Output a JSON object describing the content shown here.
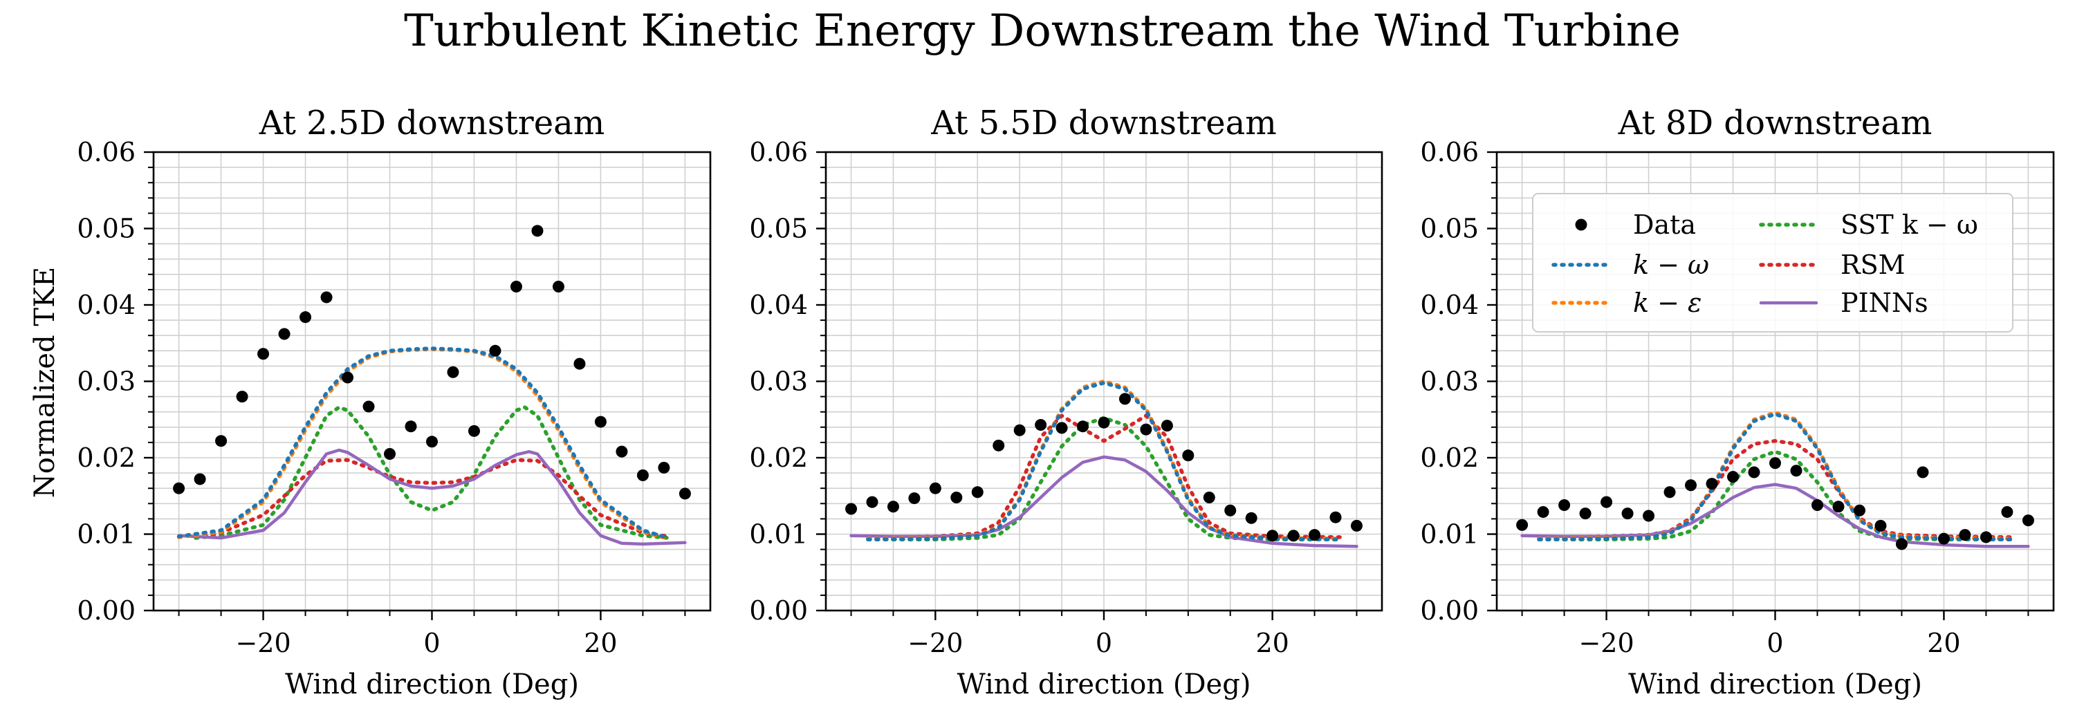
{
  "figure": {
    "title": "Turbulent Kinetic Energy Downstream the Wind Turbine",
    "ylabel": "Normalized TKE",
    "xlabel": "Wind direction (Deg)"
  },
  "colors": {
    "Data": "#000000",
    "k-omega": "#1f77b4",
    "k-epsilon": "#ff7f0e",
    "SST k-omega": "#2ca02c",
    "RSM": "#d62728",
    "PINNs": "#9467bd",
    "grid": "#d0d0d0"
  },
  "legend": {
    "placement": "top-right of third panel",
    "entries": [
      {
        "id": "Data",
        "label": "Data",
        "style": "dots"
      },
      {
        "id": "k-omega",
        "label": "k − ω",
        "style": "dotted"
      },
      {
        "id": "k-epsilon",
        "label": "k − ε",
        "style": "dotted"
      },
      {
        "id": "SST k-omega",
        "label": "SST k − ω",
        "style": "dotted"
      },
      {
        "id": "RSM",
        "label": "RSM",
        "style": "dotted"
      },
      {
        "id": "PINNs",
        "label": "PINNs",
        "style": "solid"
      }
    ]
  },
  "chart_data": [
    {
      "type": "line",
      "title": "At 2.5D downstream",
      "xlabel": "Wind direction (Deg)",
      "ylabel": "Normalized TKE",
      "xlim": [
        -33,
        33
      ],
      "ylim": [
        0,
        0.06
      ],
      "xticks": [
        -20,
        0,
        20
      ],
      "xtick_labels": [
        "−20",
        "0",
        "20"
      ],
      "yticks": [
        0.0,
        0.01,
        0.02,
        0.03,
        0.04,
        0.05,
        0.06
      ],
      "ytick_labels": [
        "0.00",
        "0.01",
        "0.02",
        "0.03",
        "0.04",
        "0.05",
        "0.06"
      ],
      "grid": true,
      "legend": false,
      "scatter": {
        "name": "Data",
        "x": [
          -30,
          -27.5,
          -25,
          -22.5,
          -20,
          -17.5,
          -15,
          -12.5,
          -10,
          -7.5,
          -5,
          -2.5,
          0,
          2.5,
          5,
          7.5,
          10,
          12.5,
          15,
          17.5,
          20,
          22.5,
          25,
          27.5,
          30
        ],
        "y": [
          0.016,
          0.0172,
          0.0222,
          0.028,
          0.0336,
          0.0362,
          0.0384,
          0.041,
          0.0305,
          0.0267,
          0.0205,
          0.0241,
          0.0221,
          0.0312,
          0.0235,
          0.034,
          0.0424,
          0.0497,
          0.0424,
          0.0323,
          0.0247,
          0.0208,
          0.0177,
          0.0187,
          0.0153
        ]
      },
      "series": [
        {
          "name": "k-omega",
          "x": [
            -30,
            -25,
            -20,
            -17.5,
            -15,
            -12.5,
            -10,
            -7.5,
            -5,
            -2.5,
            0,
            2.5,
            5,
            7.5,
            10,
            12.5,
            15,
            17.5,
            20,
            25,
            28
          ],
          "y": [
            0.0097,
            0.0105,
            0.0145,
            0.019,
            0.024,
            0.0285,
            0.0316,
            0.0333,
            0.034,
            0.0342,
            0.0343,
            0.0342,
            0.034,
            0.0333,
            0.0316,
            0.0285,
            0.024,
            0.019,
            0.0145,
            0.0105,
            0.0095
          ]
        },
        {
          "name": "k-epsilon",
          "x": [
            -30,
            -25,
            -20,
            -17.5,
            -15,
            -12.5,
            -10,
            -7.5,
            -5,
            -2.5,
            0,
            2.5,
            5,
            7.5,
            10,
            12.5,
            15,
            17.5,
            20,
            25,
            28
          ],
          "y": [
            0.0096,
            0.0103,
            0.0142,
            0.0186,
            0.0236,
            0.0281,
            0.0313,
            0.0331,
            0.0339,
            0.0341,
            0.0342,
            0.0341,
            0.0339,
            0.0331,
            0.0313,
            0.0281,
            0.0236,
            0.0186,
            0.0142,
            0.0103,
            0.0094
          ]
        },
        {
          "name": "SST k-omega",
          "x": [
            -28,
            -25,
            -20,
            -17.5,
            -15,
            -12.5,
            -11,
            -10,
            -7.5,
            -5,
            -2.5,
            0,
            2.5,
            5,
            7.5,
            10,
            11,
            12.5,
            15,
            17.5,
            20,
            25,
            28
          ],
          "y": [
            0.0095,
            0.0098,
            0.0112,
            0.0145,
            0.02,
            0.0255,
            0.0266,
            0.0262,
            0.0228,
            0.0178,
            0.0142,
            0.0131,
            0.0142,
            0.0178,
            0.0228,
            0.0262,
            0.0266,
            0.0255,
            0.02,
            0.0145,
            0.0112,
            0.0098,
            0.0095
          ]
        },
        {
          "name": "RSM",
          "x": [
            -28,
            -25,
            -20,
            -17.5,
            -15,
            -12.5,
            -10,
            -7.5,
            -5,
            -2.5,
            0,
            2.5,
            5,
            7.5,
            10,
            12.5,
            15,
            17.5,
            20,
            25,
            28
          ],
          "y": [
            0.0097,
            0.0102,
            0.0125,
            0.015,
            0.0177,
            0.0196,
            0.0197,
            0.0187,
            0.0175,
            0.0168,
            0.0167,
            0.0168,
            0.0175,
            0.0187,
            0.0197,
            0.0196,
            0.0177,
            0.015,
            0.0125,
            0.0102,
            0.0097
          ]
        },
        {
          "name": "PINNs",
          "x": [
            -30,
            -25,
            -20,
            -17.5,
            -15,
            -12.5,
            -11,
            -10,
            -7.5,
            -5,
            -2.5,
            0,
            2.5,
            5,
            7.5,
            10,
            11.5,
            12.5,
            15,
            17.5,
            20,
            22.5,
            25,
            30
          ],
          "y": [
            0.0098,
            0.0095,
            0.0105,
            0.0128,
            0.0168,
            0.0205,
            0.021,
            0.0207,
            0.019,
            0.0172,
            0.0163,
            0.016,
            0.0163,
            0.0172,
            0.019,
            0.0204,
            0.0208,
            0.0205,
            0.017,
            0.0128,
            0.0098,
            0.0088,
            0.0087,
            0.0089
          ]
        }
      ]
    },
    {
      "type": "line",
      "title": "At 5.5D downstream",
      "xlabel": "Wind direction (Deg)",
      "ylabel": "",
      "xlim": [
        -33,
        33
      ],
      "ylim": [
        0,
        0.06
      ],
      "xticks": [
        -20,
        0,
        20
      ],
      "xtick_labels": [
        "−20",
        "0",
        "20"
      ],
      "yticks": [
        0.0,
        0.01,
        0.02,
        0.03,
        0.04,
        0.05,
        0.06
      ],
      "ytick_labels": [
        "0.00",
        "0.01",
        "0.02",
        "0.03",
        "0.04",
        "0.05",
        "0.06"
      ],
      "grid": true,
      "legend": false,
      "scatter": {
        "name": "Data",
        "x": [
          -30,
          -27.5,
          -25,
          -22.5,
          -20,
          -17.5,
          -15,
          -12.5,
          -10,
          -7.5,
          -5,
          -2.5,
          0,
          2.5,
          5,
          7.5,
          10,
          12.5,
          15,
          17.5,
          20,
          22.5,
          25,
          27.5,
          30
        ],
        "y": [
          0.0133,
          0.0142,
          0.0136,
          0.0147,
          0.016,
          0.0148,
          0.0155,
          0.0216,
          0.0236,
          0.0243,
          0.0239,
          0.0241,
          0.0246,
          0.0277,
          0.0237,
          0.0242,
          0.0203,
          0.0148,
          0.0131,
          0.0121,
          0.0098,
          0.0098,
          0.0099,
          0.0122,
          0.0111
        ]
      },
      "series": [
        {
          "name": "k-omega",
          "x": [
            -28,
            -20,
            -15,
            -12.5,
            -10,
            -7.5,
            -5,
            -2.5,
            0,
            2.5,
            5,
            7.5,
            10,
            12.5,
            15,
            20,
            28
          ],
          "y": [
            0.0093,
            0.0094,
            0.0098,
            0.0108,
            0.0145,
            0.0208,
            0.0262,
            0.029,
            0.0298,
            0.029,
            0.0262,
            0.0208,
            0.0145,
            0.0108,
            0.0098,
            0.0094,
            0.0093
          ]
        },
        {
          "name": "k-epsilon",
          "x": [
            -28,
            -20,
            -15,
            -12.5,
            -10,
            -7.5,
            -5,
            -2.5,
            0,
            2.5,
            5,
            7.5,
            10,
            12.5,
            15,
            20,
            28
          ],
          "y": [
            0.0094,
            0.0095,
            0.0099,
            0.0109,
            0.0147,
            0.021,
            0.0264,
            0.0292,
            0.03,
            0.0292,
            0.0264,
            0.021,
            0.0147,
            0.0109,
            0.0099,
            0.0095,
            0.0094
          ]
        },
        {
          "name": "SST k-omega",
          "x": [
            -28,
            -20,
            -15,
            -12.5,
            -10,
            -7.5,
            -5,
            -2.5,
            0,
            2.5,
            5,
            7.5,
            10,
            12.5,
            15,
            20,
            28
          ],
          "y": [
            0.0093,
            0.0093,
            0.0095,
            0.0099,
            0.012,
            0.0168,
            0.0215,
            0.0243,
            0.0252,
            0.0243,
            0.0215,
            0.0168,
            0.012,
            0.0099,
            0.0095,
            0.0093,
            0.0093
          ]
        },
        {
          "name": "RSM",
          "x": [
            -28,
            -20,
            -15,
            -12.5,
            -10,
            -7.5,
            -5,
            -2.5,
            0,
            2.5,
            5,
            7.5,
            10,
            12.5,
            15,
            20,
            28
          ],
          "y": [
            0.0096,
            0.0097,
            0.0101,
            0.0115,
            0.0162,
            0.0227,
            0.0255,
            0.0238,
            0.0222,
            0.0238,
            0.0255,
            0.0227,
            0.0162,
            0.0115,
            0.0101,
            0.0097,
            0.0096
          ]
        },
        {
          "name": "PINNs",
          "x": [
            -30,
            -25,
            -20,
            -15,
            -12.5,
            -10,
            -7.5,
            -5,
            -2.5,
            0,
            2.5,
            5,
            7.5,
            10,
            12.5,
            15,
            20,
            25,
            30
          ],
          "y": [
            0.0098,
            0.0097,
            0.0097,
            0.0099,
            0.0106,
            0.0122,
            0.0148,
            0.0174,
            0.0194,
            0.0201,
            0.0197,
            0.0182,
            0.0157,
            0.0128,
            0.0108,
            0.0096,
            0.0088,
            0.0085,
            0.0084
          ]
        }
      ]
    },
    {
      "type": "line",
      "title": "At 8D downstream",
      "xlabel": "Wind direction (Deg)",
      "ylabel": "",
      "xlim": [
        -33,
        33
      ],
      "ylim": [
        0,
        0.06
      ],
      "xticks": [
        -20,
        0,
        20
      ],
      "xtick_labels": [
        "−20",
        "0",
        "20"
      ],
      "yticks": [
        0.0,
        0.01,
        0.02,
        0.03,
        0.04,
        0.05,
        0.06
      ],
      "ytick_labels": [
        "0.00",
        "0.01",
        "0.02",
        "0.03",
        "0.04",
        "0.05",
        "0.06"
      ],
      "grid": true,
      "legend": true,
      "scatter": {
        "name": "Data",
        "x": [
          -30,
          -27.5,
          -25,
          -22.5,
          -20,
          -17.5,
          -15,
          -12.5,
          -10,
          -7.5,
          -5,
          -2.5,
          0,
          2.5,
          5,
          7.5,
          10,
          12.5,
          15,
          17.5,
          20,
          22.5,
          25,
          27.5,
          30
        ],
        "y": [
          0.0112,
          0.0129,
          0.0138,
          0.0127,
          0.0142,
          0.0127,
          0.0124,
          0.0155,
          0.0164,
          0.0166,
          0.0175,
          0.0181,
          0.0193,
          0.0183,
          0.0138,
          0.0136,
          0.0131,
          0.0111,
          0.0087,
          0.0181,
          0.0094,
          0.0099,
          0.0096,
          0.0129,
          0.0118
        ]
      },
      "series": [
        {
          "name": "k-omega",
          "x": [
            -28,
            -20,
            -15,
            -12.5,
            -10,
            -7.5,
            -5,
            -2.5,
            0,
            2.5,
            5,
            7.5,
            10,
            12.5,
            15,
            20,
            28
          ],
          "y": [
            0.0093,
            0.0094,
            0.0096,
            0.0101,
            0.0118,
            0.0158,
            0.0212,
            0.0248,
            0.0257,
            0.0248,
            0.0212,
            0.0158,
            0.0118,
            0.0101,
            0.0096,
            0.0094,
            0.0093
          ]
        },
        {
          "name": "k-epsilon",
          "x": [
            -28,
            -20,
            -15,
            -12.5,
            -10,
            -7.5,
            -5,
            -2.5,
            0,
            2.5,
            5,
            7.5,
            10,
            12.5,
            15,
            20,
            28
          ],
          "y": [
            0.0094,
            0.0095,
            0.0097,
            0.0102,
            0.0119,
            0.016,
            0.0214,
            0.025,
            0.0259,
            0.025,
            0.0214,
            0.016,
            0.0119,
            0.0102,
            0.0097,
            0.0095,
            0.0094
          ]
        },
        {
          "name": "SST k-omega",
          "x": [
            -28,
            -20,
            -15,
            -12.5,
            -10,
            -7.5,
            -5,
            -2.5,
            0,
            2.5,
            5,
            7.5,
            10,
            12.5,
            15,
            20,
            28
          ],
          "y": [
            0.0093,
            0.0093,
            0.0094,
            0.0096,
            0.0104,
            0.0128,
            0.0168,
            0.0198,
            0.0208,
            0.0198,
            0.0168,
            0.0128,
            0.0104,
            0.0096,
            0.0094,
            0.0093,
            0.0093
          ]
        },
        {
          "name": "RSM",
          "x": [
            -28,
            -20,
            -15,
            -12.5,
            -10,
            -7.5,
            -5,
            -2.5,
            0,
            2.5,
            5,
            7.5,
            10,
            12.5,
            15,
            20,
            28
          ],
          "y": [
            0.0096,
            0.0097,
            0.0099,
            0.0104,
            0.0121,
            0.0156,
            0.0198,
            0.0218,
            0.0222,
            0.0218,
            0.0198,
            0.0156,
            0.0121,
            0.0104,
            0.0099,
            0.0097,
            0.0096
          ]
        },
        {
          "name": "PINNs",
          "x": [
            -30,
            -25,
            -20,
            -15,
            -12.5,
            -10,
            -7.5,
            -5,
            -2.5,
            0,
            2.5,
            5,
            7.5,
            10,
            12.5,
            15,
            20,
            25,
            30
          ],
          "y": [
            0.0098,
            0.0097,
            0.0097,
            0.0099,
            0.0104,
            0.0114,
            0.013,
            0.0148,
            0.0161,
            0.0165,
            0.016,
            0.0144,
            0.0124,
            0.0107,
            0.0096,
            0.009,
            0.0086,
            0.0084,
            0.0084
          ]
        }
      ]
    }
  ]
}
